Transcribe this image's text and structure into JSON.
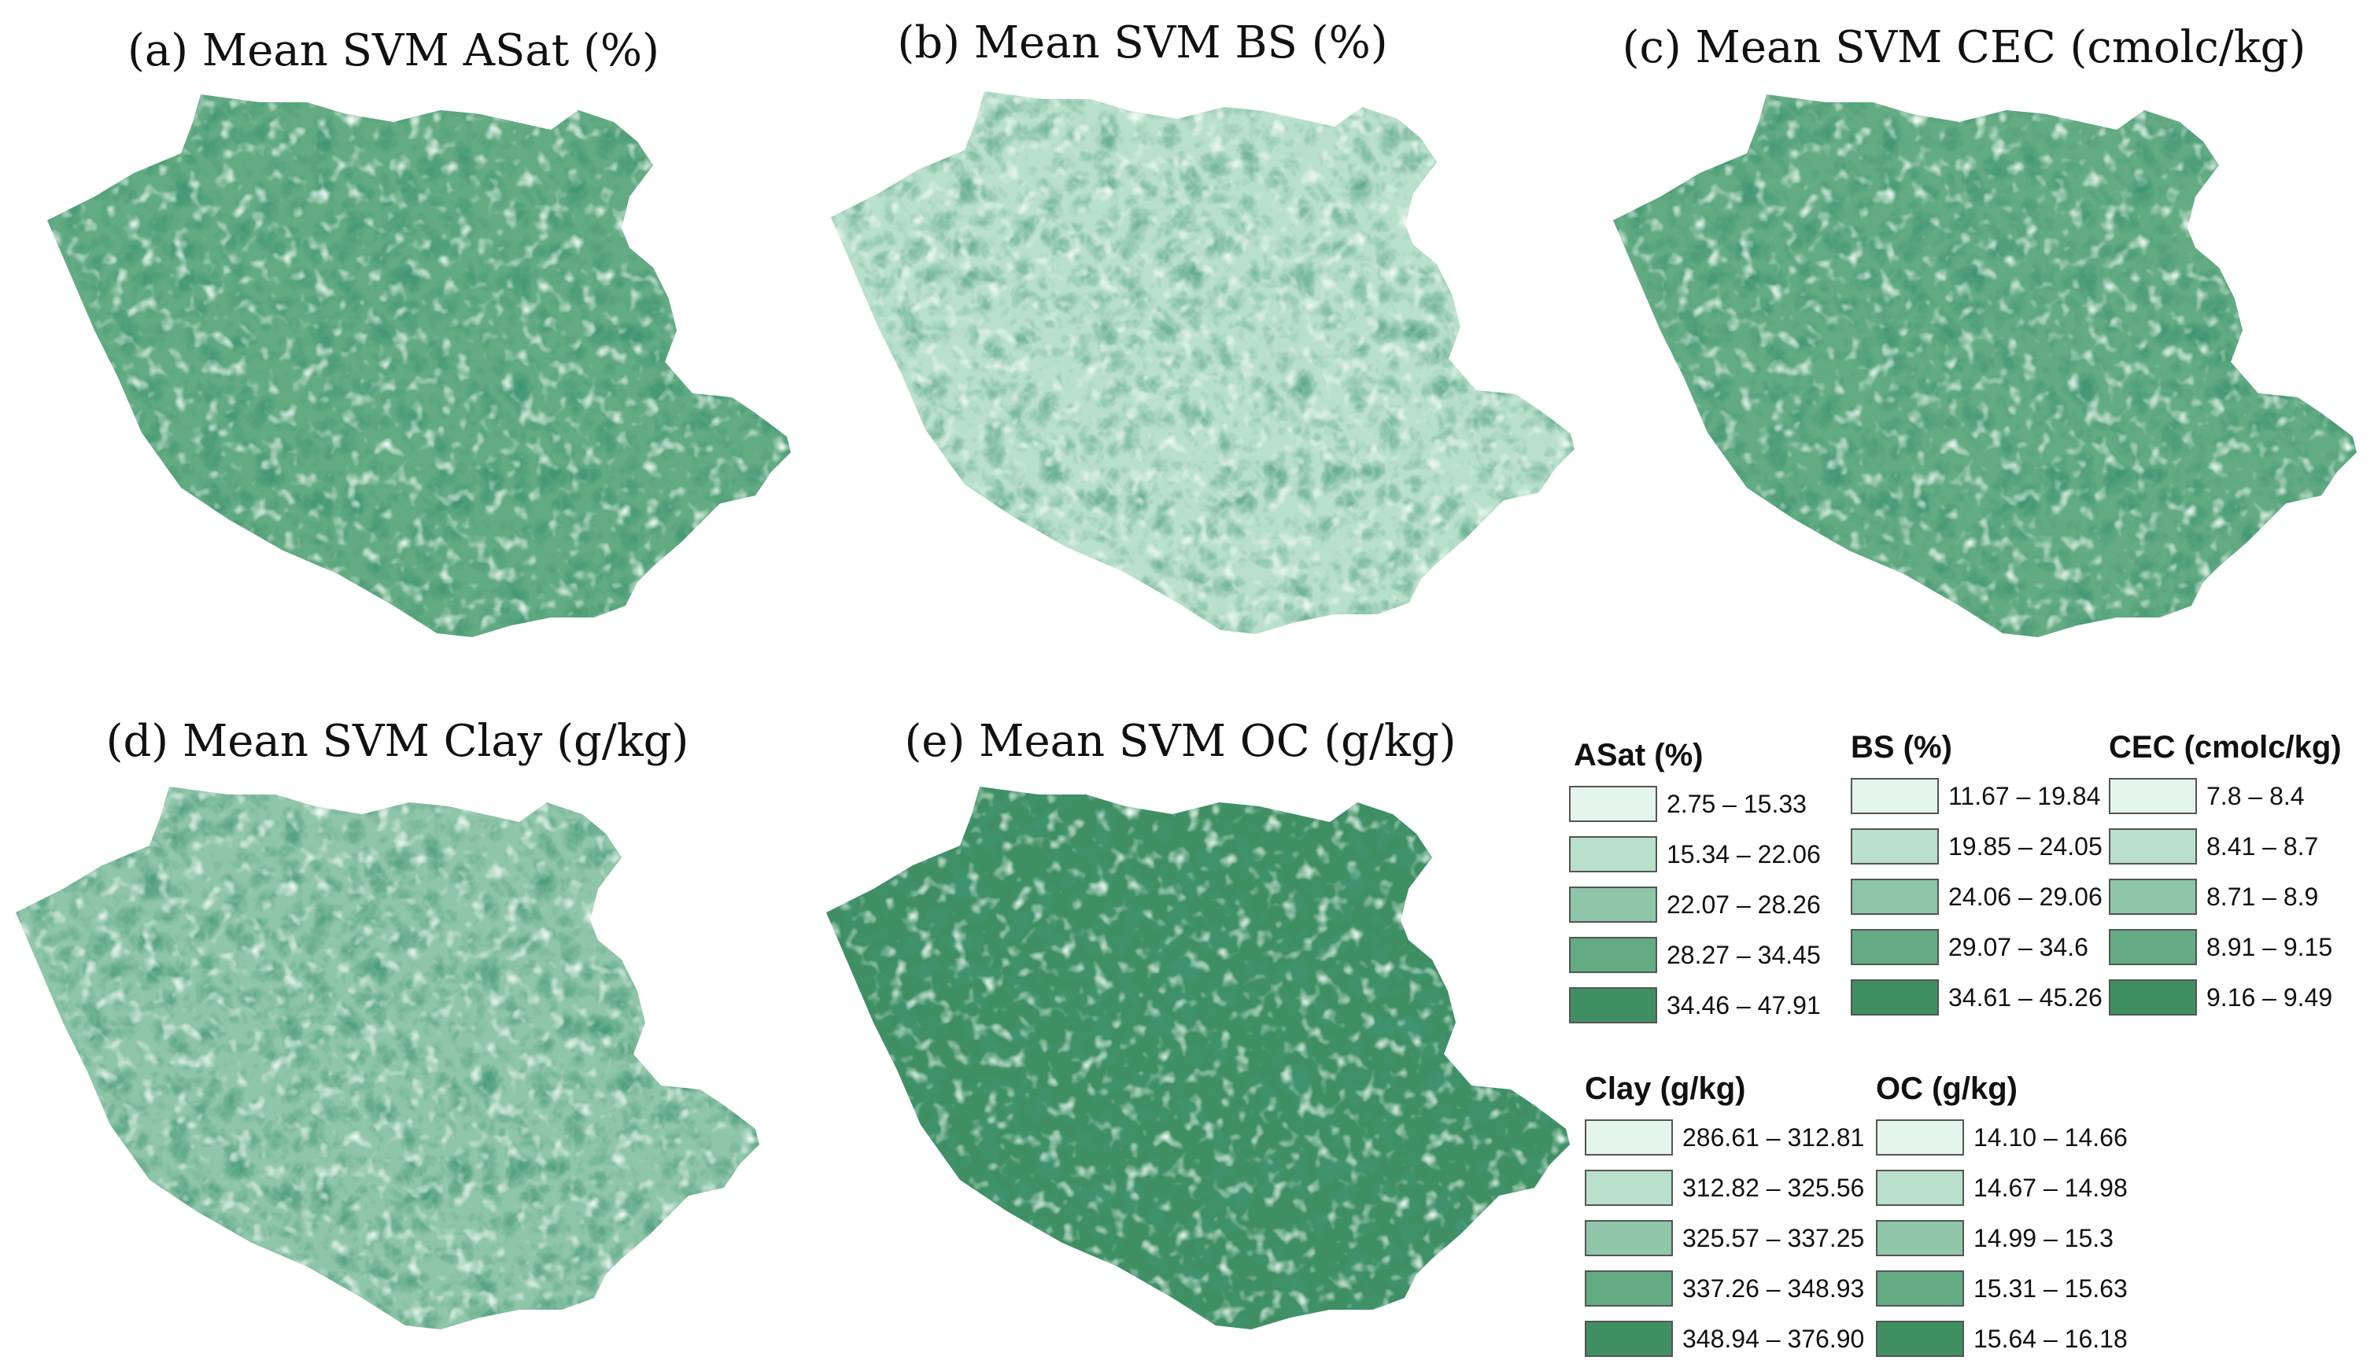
{
  "panels": [
    {
      "id": "a",
      "title": "(a) Mean SVM ASat (%)",
      "mean_class": 4
    },
    {
      "id": "b",
      "title": "(b) Mean SVM BS (%)",
      "mean_class": 2
    },
    {
      "id": "c",
      "title": "(c) Mean SVM CEC (cmolc/kg)",
      "mean_class": 4
    },
    {
      "id": "d",
      "title": "(d) Mean SVM Clay (g/kg)",
      "mean_class": 3
    },
    {
      "id": "e",
      "title": "(e) Mean SVM OC (g/kg)",
      "mean_class": 5
    }
  ],
  "class_colors": [
    "#e3f5ec",
    "#b9e0ca",
    "#8fc5a8",
    "#63ab82",
    "#3f8f63"
  ],
  "relief_colors": {
    "dark": "#0b5230",
    "mid": "#2f7a50",
    "light": "#d9f0e2"
  },
  "legends": [
    {
      "title": "ASat (%)",
      "classes": [
        "2.75 – 15.33",
        "15.34 – 22.06",
        "22.07 – 28.26",
        "28.27 – 34.45",
        "34.46 – 47.91"
      ]
    },
    {
      "title": "BS (%)",
      "classes": [
        "11.67 – 19.84",
        "19.85 – 24.05",
        "24.06 – 29.06",
        "29.07 – 34.6",
        "34.61 – 45.26"
      ]
    },
    {
      "title": "CEC (cmolc/kg)",
      "classes": [
        "7.8 – 8.4",
        "8.41 – 8.7",
        "8.71 – 8.9",
        "8.91 – 9.15",
        "9.16 – 9.49"
      ]
    },
    {
      "title": "Clay (g/kg)",
      "classes": [
        "286.61 – 312.81",
        "312.82 – 325.56",
        "325.57 – 337.25",
        "337.26 – 348.93",
        "348.94 – 376.90"
      ]
    },
    {
      "title": "OC (g/kg)",
      "classes": [
        "14.10 – 14.66",
        "14.67 – 14.98",
        "14.99 – 15.3",
        "15.31 – 15.63",
        "15.64 – 16.18"
      ]
    }
  ]
}
